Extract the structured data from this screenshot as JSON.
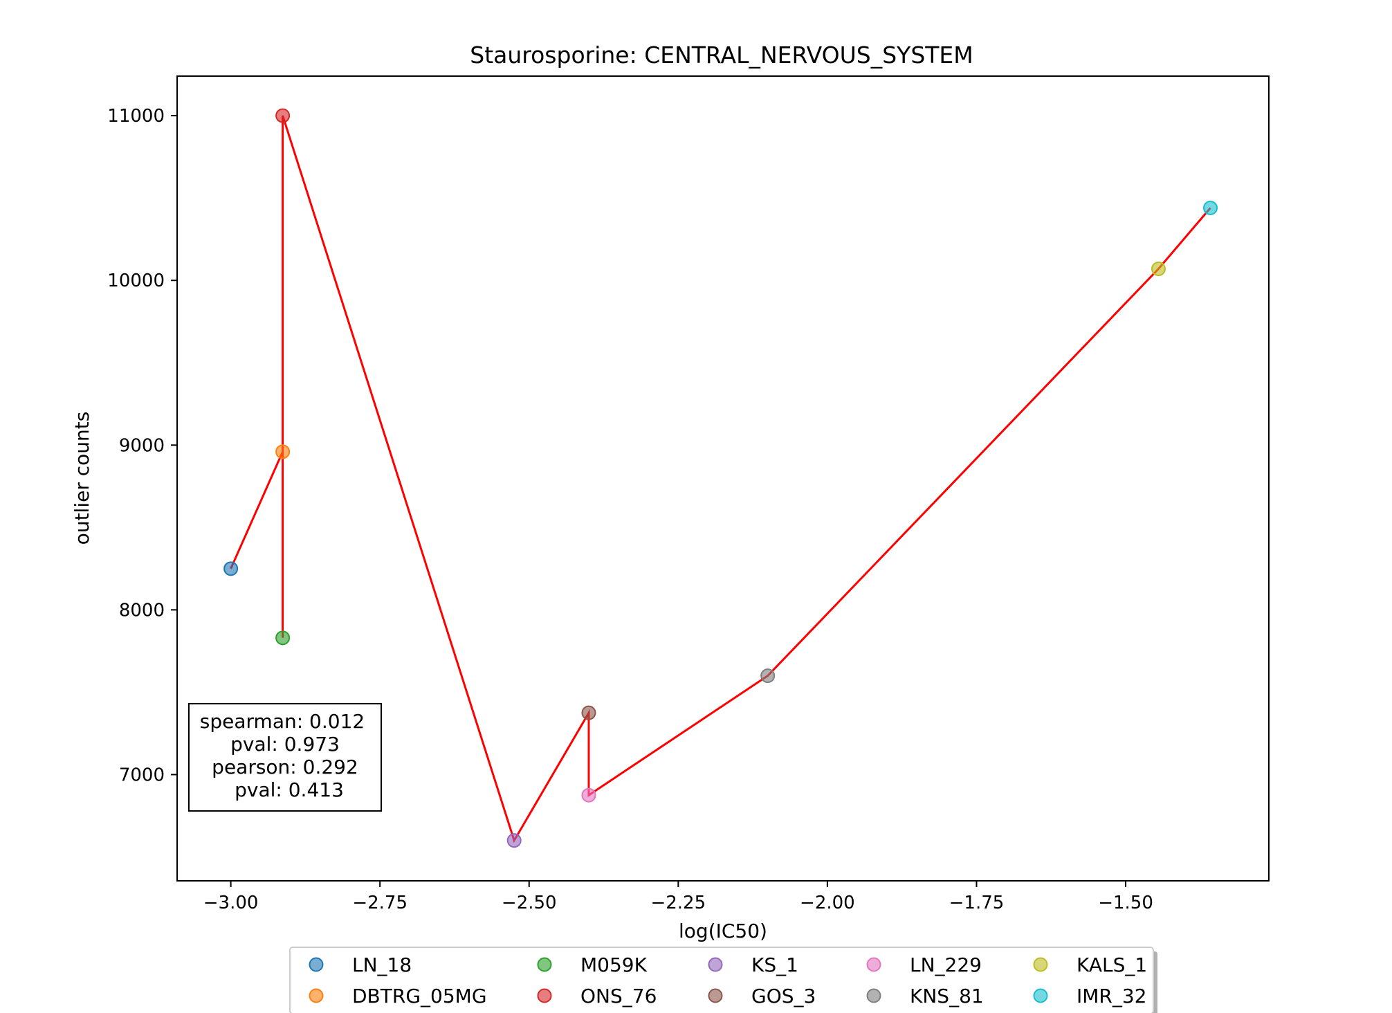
{
  "chart_data": {
    "type": "scatter",
    "title": "Staurosporine: CENTRAL_NERVOUS_SYSTEM",
    "xlabel": "log(IC50)",
    "ylabel": "outlier counts",
    "xlim": [
      -3.09,
      -1.26
    ],
    "ylim": [
      6355,
      11240
    ],
    "xticks": [
      -3.0,
      -2.75,
      -2.5,
      -2.25,
      -2.0,
      -1.75,
      -1.5
    ],
    "xtick_labels": [
      "−3.00",
      "−2.75",
      "−2.50",
      "−2.25",
      "−2.00",
      "−1.75",
      "−1.50"
    ],
    "yticks": [
      7000,
      8000,
      9000,
      10000,
      11000
    ],
    "ytick_labels": [
      "7000",
      "8000",
      "9000",
      "10000",
      "11000"
    ],
    "grid": false,
    "legend_position": "bottom-center",
    "series": [
      {
        "name": "LN_18",
        "x": -3.0,
        "y": 8250,
        "color": "#1f77b4"
      },
      {
        "name": "DBTRG_05MG",
        "x": -2.913,
        "y": 8960,
        "color": "#ff7f0e"
      },
      {
        "name": "M059K",
        "x": -2.913,
        "y": 7830,
        "color": "#2ca02c"
      },
      {
        "name": "ONS_76",
        "x": -2.913,
        "y": 11000,
        "color": "#d62728"
      },
      {
        "name": "KS_1",
        "x": -2.525,
        "y": 6600,
        "color": "#9467bd"
      },
      {
        "name": "GOS_3",
        "x": -2.4,
        "y": 7375,
        "color": "#8c564b"
      },
      {
        "name": "LN_229",
        "x": -2.4,
        "y": 6875,
        "color": "#e377c2"
      },
      {
        "name": "KNS_81",
        "x": -2.1,
        "y": 7600,
        "color": "#7f7f7f"
      },
      {
        "name": "KALS_1",
        "x": -1.445,
        "y": 10070,
        "color": "#bcbd22"
      },
      {
        "name": "IMR_32",
        "x": -1.358,
        "y": 10440,
        "color": "#17becf"
      }
    ],
    "line": {
      "color": "#ff0000",
      "order": [
        "LN_18",
        "DBTRG_05MG",
        "M059K",
        "ONS_76",
        "KS_1",
        "GOS_3",
        "LN_229",
        "KNS_81",
        "KALS_1",
        "IMR_32"
      ]
    },
    "stats_box": [
      "spearman: 0.012",
      "pval: 0.973",
      "pearson: 0.292",
      "pval: 0.413"
    ]
  }
}
